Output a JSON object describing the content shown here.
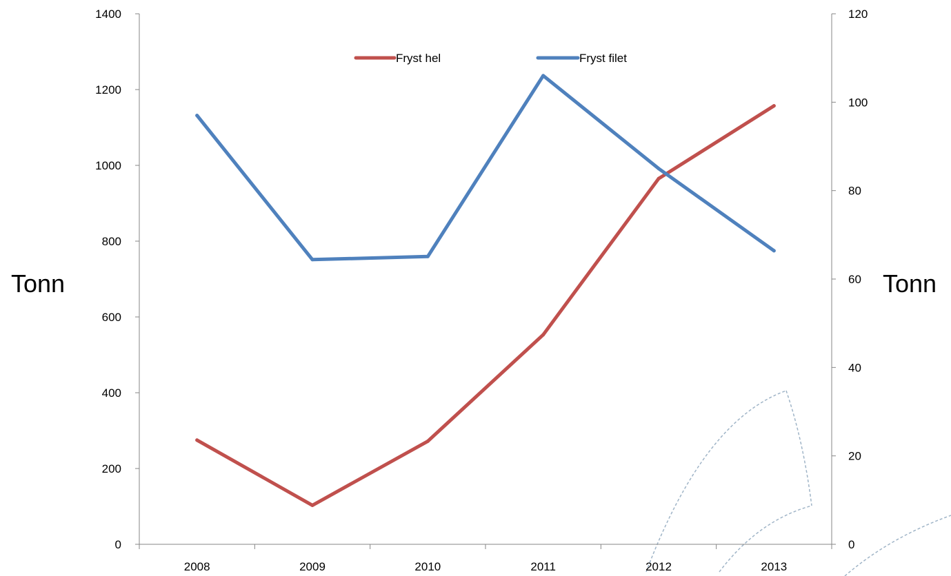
{
  "chart_data": {
    "type": "line",
    "categories": [
      "2008",
      "2009",
      "2010",
      "2011",
      "2012",
      "2013"
    ],
    "series": [
      {
        "name": "Fryst hel",
        "axis": "left",
        "color": "#C0504D",
        "values": [
          275,
          103,
          272,
          553,
          965,
          1157
        ]
      },
      {
        "name": "Fryst filet",
        "axis": "right",
        "color": "#4F81BD",
        "values": [
          97,
          64.4,
          65.1,
          106,
          85,
          66.4
        ]
      }
    ],
    "y_left": {
      "label": "Tonn",
      "ylim": [
        0,
        1400
      ],
      "ticks": [
        "0",
        "200",
        "400",
        "600",
        "800",
        "1000",
        "1200",
        "1400"
      ]
    },
    "y_right": {
      "label": "Tonn",
      "ylim": [
        0,
        120
      ],
      "ticks": [
        "0",
        "20",
        "40",
        "60",
        "80",
        "100",
        "120"
      ]
    },
    "legend": {
      "position": "top",
      "labels": [
        "Fryst hel",
        "Fryst filet"
      ]
    },
    "grid": false
  }
}
